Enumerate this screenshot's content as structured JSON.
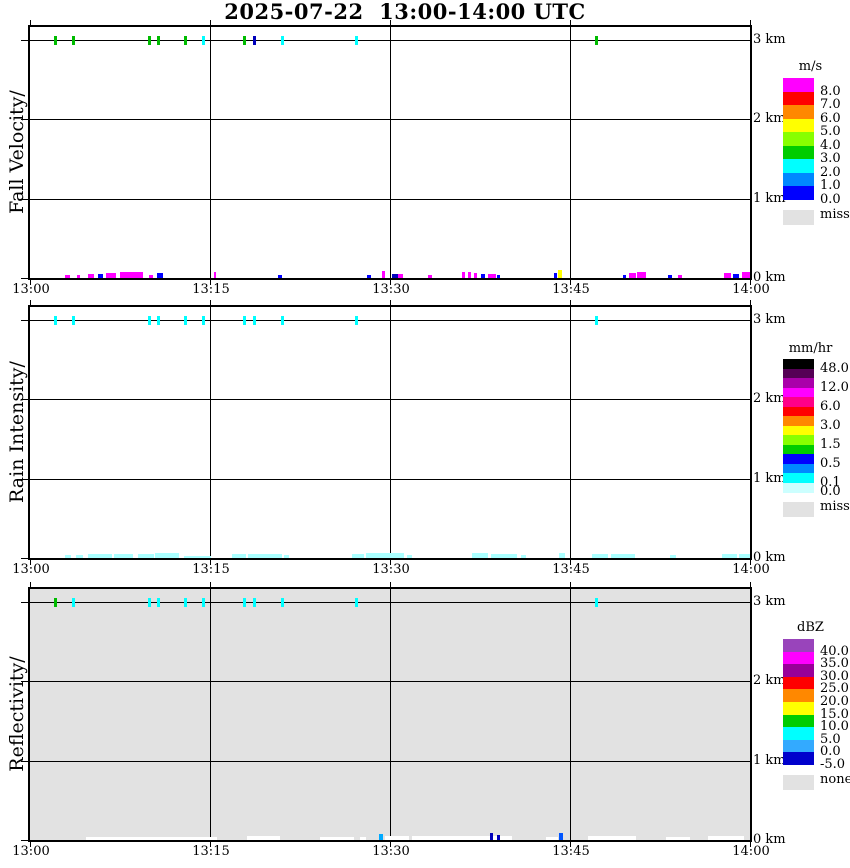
{
  "title": "2025-07-22  13:00-14:00 UTC",
  "chart_data": [
    {
      "id": "fall-velocity",
      "type": "heatmap",
      "axis_label": "Fall Velocity/",
      "units": "m/s",
      "bg": "#FFFFFF",
      "x_ticks": [
        "13:00",
        "13:15",
        "13:30",
        "13:45",
        "14:00"
      ],
      "y_ticks": [
        "3 km",
        "2 km",
        "1 km",
        "0 km"
      ],
      "x_range_minutes": [
        0,
        60
      ],
      "y_range_km": [
        0,
        3
      ],
      "scale": {
        "title": "m/s",
        "colors": [
          "#FF00FF",
          "#FF0000",
          "#FF8800",
          "#FFFF00",
          "#88FF00",
          "#00CC00",
          "#00FFFF",
          "#0088FF",
          "#0000FF"
        ],
        "labels": [
          {
            "v": "8.0",
            "b": 1
          },
          {
            "v": "7.0",
            "b": 2
          },
          {
            "v": "6.0",
            "b": 3
          },
          {
            "v": "5.0",
            "b": 4
          },
          {
            "v": "4.0",
            "b": 5
          },
          {
            "v": "3.0",
            "b": 6
          },
          {
            "v": "2.0",
            "b": 7
          },
          {
            "v": "1.0",
            "b": 8
          },
          {
            "v": "0.0",
            "b": 9
          }
        ],
        "missing": {
          "label": "miss",
          "color": "#E2E2E2"
        }
      },
      "echo_top_marks": [
        {
          "m": 2.1,
          "c": "#00BB00"
        },
        {
          "m": 3.6,
          "c": "#00BB00"
        },
        {
          "m": 9.9,
          "c": "#00BB00"
        },
        {
          "m": 10.7,
          "c": "#00BB00"
        },
        {
          "m": 12.9,
          "c": "#00BB00"
        },
        {
          "m": 14.4,
          "c": "#00FFFF"
        },
        {
          "m": 17.8,
          "c": "#00BB00"
        },
        {
          "m": 18.7,
          "c": "#0000BB"
        },
        {
          "m": 21.0,
          "c": "#00FFFF"
        },
        {
          "m": 27.2,
          "c": "#00FFFF"
        },
        {
          "m": 47.2,
          "c": "#00BB00"
        }
      ],
      "surface_marks": [
        {
          "m": 2.95,
          "w": 0.35,
          "h": 3,
          "c": "#FF00FF"
        },
        {
          "m": 3.9,
          "w": 0.25,
          "h": 3,
          "c": "#FF00FF"
        },
        {
          "m": 4.85,
          "w": 0.45,
          "h": 4,
          "c": "#FF00FF"
        },
        {
          "m": 5.7,
          "w": 0.35,
          "h": 4,
          "c": "#0000FF"
        },
        {
          "m": 6.3,
          "w": 0.9,
          "h": 5,
          "c": "#FF00FF"
        },
        {
          "m": 7.5,
          "w": 1.9,
          "h": 6,
          "c": "#FF00FF"
        },
        {
          "m": 9.95,
          "w": 0.3,
          "h": 3,
          "c": "#FF00FF"
        },
        {
          "m": 10.6,
          "w": 0.5,
          "h": 5,
          "c": "#0000FF"
        },
        {
          "m": 15.3,
          "w": 0.2,
          "h": 6,
          "c": "#FF00FF"
        },
        {
          "m": 20.7,
          "w": 0.3,
          "h": 3,
          "c": "#0000FF"
        },
        {
          "m": 28.1,
          "w": 0.3,
          "h": 3,
          "c": "#0000FF"
        },
        {
          "m": 29.35,
          "w": 0.2,
          "h": 7,
          "c": "#FF00FF"
        },
        {
          "m": 30.2,
          "w": 0.5,
          "h": 4,
          "c": "#0000BB"
        },
        {
          "m": 30.7,
          "w": 0.35,
          "h": 4,
          "c": "#FF00FF"
        },
        {
          "m": 33.2,
          "w": 0.3,
          "h": 3,
          "c": "#FF00FF"
        },
        {
          "m": 36.0,
          "w": 0.25,
          "h": 6,
          "c": "#FF00FF"
        },
        {
          "m": 36.5,
          "w": 0.25,
          "h": 6,
          "c": "#FF00FF"
        },
        {
          "m": 37.0,
          "w": 0.25,
          "h": 5,
          "c": "#FF00FF"
        },
        {
          "m": 37.6,
          "w": 0.3,
          "h": 4,
          "c": "#0000FF"
        },
        {
          "m": 38.2,
          "w": 0.6,
          "h": 4,
          "c": "#FF00FF"
        },
        {
          "m": 38.9,
          "w": 0.3,
          "h": 3,
          "c": "#0000FF"
        },
        {
          "m": 43.7,
          "w": 0.25,
          "h": 5,
          "c": "#0000FF"
        },
        {
          "m": 44.0,
          "w": 0.3,
          "h": 8,
          "c": "#FFFF00"
        },
        {
          "m": 49.4,
          "w": 0.3,
          "h": 3,
          "c": "#0000FF"
        },
        {
          "m": 49.9,
          "w": 0.6,
          "h": 5,
          "c": "#FF00FF"
        },
        {
          "m": 50.6,
          "w": 0.7,
          "h": 6,
          "c": "#FF00FF"
        },
        {
          "m": 53.2,
          "w": 0.3,
          "h": 3,
          "c": "#0000FF"
        },
        {
          "m": 54.0,
          "w": 0.3,
          "h": 3,
          "c": "#FF00FF"
        },
        {
          "m": 57.8,
          "w": 0.6,
          "h": 5,
          "c": "#FF00FF"
        },
        {
          "m": 58.6,
          "w": 0.5,
          "h": 4,
          "c": "#0000FF"
        },
        {
          "m": 59.3,
          "w": 0.7,
          "h": 6,
          "c": "#FF00FF"
        }
      ]
    },
    {
      "id": "rain-intensity",
      "type": "heatmap",
      "axis_label": "Rain Intensity/",
      "units": "mm/hr",
      "bg": "#FFFFFF",
      "x_ticks": [
        "13:00",
        "13:15",
        "13:30",
        "13:45",
        "14:00"
      ],
      "y_ticks": [
        "3 km",
        "2 km",
        "1 km",
        "0 km"
      ],
      "x_range_minutes": [
        0,
        60
      ],
      "y_range_km": [
        0,
        3
      ],
      "scale": {
        "title": "mm/hr",
        "colors": [
          "#000000",
          "#550055",
          "#AA00AA",
          "#FF00FF",
          "#FF0088",
          "#FF0000",
          "#FF8800",
          "#FFFF00",
          "#88FF00",
          "#00CC00",
          "#0000FF",
          "#0088FF",
          "#00FFFF",
          "#CCFFFF"
        ],
        "labels": [
          {
            "v": "48.0",
            "b": 1
          },
          {
            "v": "12.0",
            "b": 3
          },
          {
            "v": "6.0",
            "b": 5
          },
          {
            "v": "3.0",
            "b": 7
          },
          {
            "v": "1.5",
            "b": 9
          },
          {
            "v": "0.5",
            "b": 11
          },
          {
            "v": "0.1",
            "b": 13
          },
          {
            "v": "0.0",
            "b": 14
          }
        ],
        "missing": {
          "label": "miss",
          "color": "#E2E2E2"
        }
      },
      "echo_top_marks": [
        {
          "m": 2.1,
          "c": "#00FFFF"
        },
        {
          "m": 3.6,
          "c": "#00FFFF"
        },
        {
          "m": 9.9,
          "c": "#00FFFF"
        },
        {
          "m": 10.7,
          "c": "#00FFFF"
        },
        {
          "m": 12.9,
          "c": "#00FFFF"
        },
        {
          "m": 14.4,
          "c": "#00FFFF"
        },
        {
          "m": 17.8,
          "c": "#00FFFF"
        },
        {
          "m": 18.7,
          "c": "#00FFFF"
        },
        {
          "m": 21.0,
          "c": "#00FFFF"
        },
        {
          "m": 27.2,
          "c": "#00FFFF"
        },
        {
          "m": 47.2,
          "c": "#00FFFF"
        }
      ],
      "surface_marks": [
        {
          "m": 2.9,
          "w": 0.5,
          "h": 3,
          "c": "#AAFFFF"
        },
        {
          "m": 3.8,
          "w": 0.6,
          "h": 3,
          "c": "#AAFFFF"
        },
        {
          "m": 4.8,
          "w": 2.0,
          "h": 4,
          "c": "#AAFFFF"
        },
        {
          "m": 7.0,
          "w": 1.6,
          "h": 4,
          "c": "#AAFFFF"
        },
        {
          "m": 9.0,
          "w": 1.3,
          "h": 4,
          "c": "#AAFFFF"
        },
        {
          "m": 10.4,
          "w": 2.0,
          "h": 5,
          "c": "#AAFFFF"
        },
        {
          "m": 12.8,
          "w": 2.3,
          "h": 2,
          "c": "#AAFFFF"
        },
        {
          "m": 16.8,
          "w": 1.2,
          "h": 4,
          "c": "#AAFFFF"
        },
        {
          "m": 18.2,
          "w": 2.8,
          "h": 4,
          "c": "#AAFFFF"
        },
        {
          "m": 21.2,
          "w": 0.4,
          "h": 3,
          "c": "#AAFFFF"
        },
        {
          "m": 26.8,
          "w": 1.0,
          "h": 4,
          "c": "#AAFFFF"
        },
        {
          "m": 28.0,
          "w": 3.2,
          "h": 5,
          "c": "#AAFFFF"
        },
        {
          "m": 31.4,
          "w": 0.4,
          "h": 3,
          "c": "#AAFFFF"
        },
        {
          "m": 36.8,
          "w": 1.4,
          "h": 5,
          "c": "#AAFFFF"
        },
        {
          "m": 38.4,
          "w": 2.2,
          "h": 4,
          "c": "#AAFFFF"
        },
        {
          "m": 40.9,
          "w": 0.4,
          "h": 3,
          "c": "#AAFFFF"
        },
        {
          "m": 44.1,
          "w": 0.5,
          "h": 5,
          "c": "#AAFFFF"
        },
        {
          "m": 46.8,
          "w": 1.4,
          "h": 4,
          "c": "#AAFFFF"
        },
        {
          "m": 48.4,
          "w": 2.0,
          "h": 4,
          "c": "#AAFFFF"
        },
        {
          "m": 53.3,
          "w": 0.5,
          "h": 3,
          "c": "#AAFFFF"
        },
        {
          "m": 57.7,
          "w": 1.2,
          "h": 4,
          "c": "#AAFFFF"
        },
        {
          "m": 59.1,
          "w": 0.9,
          "h": 4,
          "c": "#AAFFFF"
        }
      ]
    },
    {
      "id": "reflectivity",
      "type": "heatmap",
      "axis_label": "Reflectivity/",
      "units": "dBZ",
      "bg": "#E2E2E2",
      "x_ticks": [
        "13:00",
        "13:15",
        "13:30",
        "13:45",
        "14:00"
      ],
      "y_ticks": [
        "3 km",
        "2 km",
        "1 km",
        "0 km"
      ],
      "x_range_minutes": [
        0,
        60
      ],
      "y_range_km": [
        0,
        3
      ],
      "scale": {
        "title": "dBZ",
        "colors": [
          "#9944BB",
          "#FF00FF",
          "#990099",
          "#FF0000",
          "#FF8800",
          "#FFFF00",
          "#00CC00",
          "#00FFFF",
          "#33AAFF",
          "#0000CC"
        ],
        "labels": [
          {
            "v": "40.0",
            "b": 1
          },
          {
            "v": "35.0",
            "b": 2
          },
          {
            "v": "30.0",
            "b": 3
          },
          {
            "v": "25.0",
            "b": 4
          },
          {
            "v": "20.0",
            "b": 5
          },
          {
            "v": "15.0",
            "b": 6
          },
          {
            "v": "10.0",
            "b": 7
          },
          {
            "v": "5.0",
            "b": 8
          },
          {
            "v": "0.0",
            "b": 9
          },
          {
            "v": "-5.0",
            "b": 10
          }
        ],
        "missing": {
          "label": "none",
          "color": "#E2E2E2"
        }
      },
      "echo_top_marks": [
        {
          "m": 2.1,
          "c": "#00BB00"
        },
        {
          "m": 3.6,
          "c": "#00FFFF"
        },
        {
          "m": 9.9,
          "c": "#00FFFF"
        },
        {
          "m": 10.7,
          "c": "#00FFFF"
        },
        {
          "m": 12.9,
          "c": "#00FFFF"
        },
        {
          "m": 14.4,
          "c": "#00FFFF"
        },
        {
          "m": 17.8,
          "c": "#00FFFF"
        },
        {
          "m": 18.7,
          "c": "#00FFFF"
        },
        {
          "m": 21.0,
          "c": "#00FFFF"
        },
        {
          "m": 27.2,
          "c": "#00FFFF"
        },
        {
          "m": 47.2,
          "c": "#00FFFF"
        }
      ],
      "gaps": [
        {
          "m": 4.7,
          "w": 10.9,
          "h": 3
        },
        {
          "m": 18.1,
          "w": 2.7,
          "h": 4
        },
        {
          "m": 24.2,
          "w": 2.8,
          "h": 3
        },
        {
          "m": 27.5,
          "w": 0.5,
          "h": 3
        },
        {
          "m": 29.6,
          "w": 2.0,
          "h": 4
        },
        {
          "m": 31.8,
          "w": 8.4,
          "h": 4
        },
        {
          "m": 43.0,
          "w": 1.0,
          "h": 3
        },
        {
          "m": 46.5,
          "w": 4.0,
          "h": 4
        },
        {
          "m": 53.0,
          "w": 2.0,
          "h": 3
        },
        {
          "m": 56.5,
          "w": 3.0,
          "h": 4
        }
      ],
      "surface_marks": [
        {
          "m": 29.1,
          "w": 0.3,
          "h": 6,
          "c": "#00AAFF"
        },
        {
          "m": 38.3,
          "w": 0.25,
          "h": 7,
          "c": "#0000BB"
        },
        {
          "m": 38.9,
          "w": 0.25,
          "h": 5,
          "c": "#0000BB"
        },
        {
          "m": 44.1,
          "w": 0.3,
          "h": 7,
          "c": "#0055FF"
        }
      ]
    }
  ]
}
